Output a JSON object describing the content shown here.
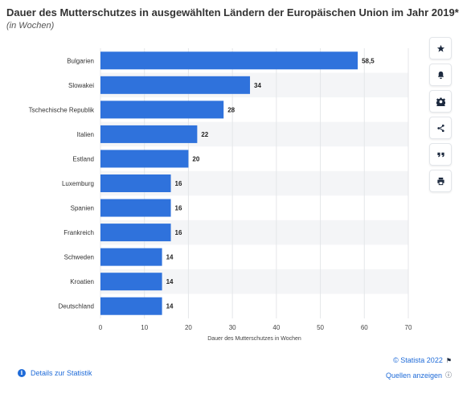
{
  "title": "Dauer des Mutterschutzes in ausgewählten Ländern der Europäischen Union im Jahr 2019*",
  "subtitle": "(in Wochen)",
  "toolbar": [
    "star-icon",
    "bell-icon",
    "gear-icon",
    "share-icon",
    "quote-icon",
    "print-icon"
  ],
  "footer": {
    "details_label": "Details zur Statistik",
    "copyright_label": "© Statista 2022",
    "sources_label": "Quellen anzeigen"
  },
  "colors": {
    "bar": "#2f72dc",
    "stripe": "#f4f5f7",
    "grid": "#e4e6e9",
    "link": "#1f6bd8"
  },
  "chart_data": {
    "type": "bar",
    "orientation": "horizontal",
    "categories": [
      "Bulgarien",
      "Slowakei",
      "Tschechische Republik",
      "Italien",
      "Estland",
      "Luxemburg",
      "Spanien",
      "Frankreich",
      "Schweden",
      "Kroatien",
      "Deutschland"
    ],
    "values": [
      58.5,
      34,
      28,
      22,
      20,
      16,
      16,
      16,
      14,
      14,
      14
    ],
    "value_labels": [
      "58,5",
      "34",
      "28",
      "22",
      "20",
      "16",
      "16",
      "16",
      "14",
      "14",
      "14"
    ],
    "xlabel": "Dauer des Mutterschutzes in Wochen",
    "ylabel": "",
    "xlim": [
      0,
      70
    ],
    "xticks": [
      0,
      10,
      20,
      30,
      40,
      50,
      60,
      70
    ],
    "grid": true,
    "legend": "none"
  }
}
